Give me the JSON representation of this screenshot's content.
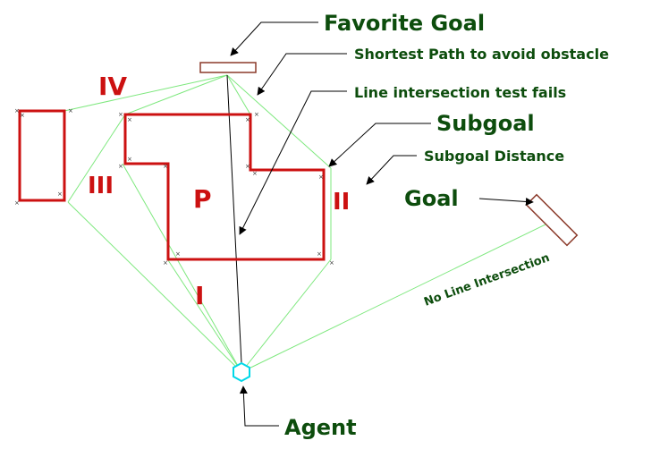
{
  "colors": {
    "background": "#ffffff",
    "obstacle": "#cc1111",
    "visibility_edge": "#7ee87e",
    "annotation_text": "#0d4d0d",
    "region_label": "#cc1111",
    "goal_marker": "#8b3a2a",
    "agent_marker": "#00d8e8",
    "arrow": "#000000"
  },
  "labels": {
    "favorite_goal": "Favorite Goal",
    "shortest_path": "Shortest Path to avoid obstacle",
    "line_intersection_fails": "Line intersection test fails",
    "subgoal": "Subgoal",
    "subgoal_distance": "Subgoal Distance",
    "goal": "Goal",
    "no_line_intersection": "No Line Intersection",
    "agent": "Agent"
  },
  "regions": {
    "iv": "IV",
    "iii": "III",
    "p": "P",
    "ii": "II",
    "i": "I"
  },
  "icons": {
    "agent": "hexagon-agent-icon",
    "goal": "goal-bar-icon",
    "favorite_goal": "favorite-goal-bar-icon"
  }
}
